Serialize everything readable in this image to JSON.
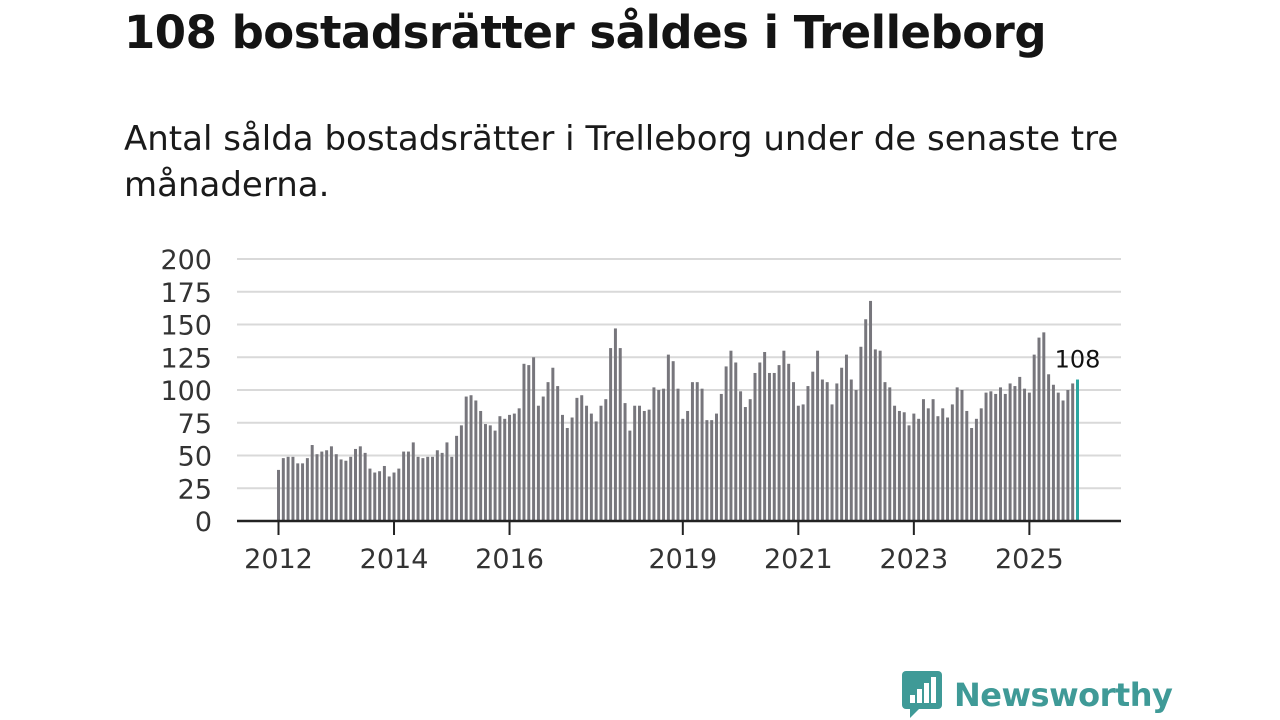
{
  "title": "108 bostadsrätter såldes i Trelleborg",
  "subtitle": "Antal sålda bostadsrätter i Trelleborg under de senaste tre månaderna.",
  "brand": {
    "name": "Newsworthy",
    "icon": "newsworthy-logo-icon",
    "color": "#3f9a97"
  },
  "chart_data": {
    "type": "bar",
    "title": "108 bostadsrätter såldes i Trelleborg",
    "xlabel": "",
    "ylabel": "",
    "ylim": [
      0,
      200
    ],
    "yticks": [
      "0",
      "25",
      "50",
      "75",
      "100",
      "125",
      "150",
      "175",
      "200"
    ],
    "xticks": [
      {
        "label": "2012",
        "index": 0
      },
      {
        "label": "2014",
        "index": 24
      },
      {
        "label": "2016",
        "index": 48
      },
      {
        "label": "2019",
        "index": 84
      },
      {
        "label": "2021",
        "index": 108
      },
      {
        "label": "2023",
        "index": 132
      },
      {
        "label": "2025",
        "index": 156
      }
    ],
    "bar_color": "#77767c",
    "highlight_color": "#2aa6a0",
    "highlight_label": "108",
    "series": [
      {
        "name": "Antal sålda bostadsrätter",
        "values": [
          39,
          48,
          49,
          49,
          44,
          44,
          48,
          58,
          51,
          53,
          54,
          57,
          51,
          47,
          46,
          49,
          55,
          57,
          52,
          40,
          37,
          38,
          42,
          34,
          37,
          40,
          53,
          53,
          60,
          49,
          48,
          49,
          49,
          54,
          52,
          60,
          49,
          65,
          73,
          95,
          96,
          92,
          84,
          74,
          73,
          69,
          80,
          78,
          81,
          82,
          86,
          120,
          119,
          125,
          88,
          95,
          106,
          117,
          103,
          81,
          71,
          79,
          94,
          96,
          88,
          82,
          76,
          88,
          93,
          132,
          147,
          132,
          90,
          69,
          88,
          88,
          84,
          85,
          102,
          100,
          101,
          127,
          122,
          101,
          78,
          84,
          106,
          106,
          101,
          77,
          77,
          82,
          97,
          118,
          130,
          121,
          99,
          87,
          93,
          113,
          121,
          129,
          113,
          113,
          119,
          130,
          120,
          106,
          88,
          89,
          103,
          114,
          130,
          108,
          106,
          89,
          105,
          117,
          127,
          108,
          100,
          133,
          154,
          168,
          131,
          130,
          106,
          102,
          88,
          84,
          83,
          73,
          82,
          78,
          93,
          86,
          93,
          80,
          86,
          79,
          89,
          102,
          100,
          84,
          71,
          78,
          86,
          98,
          99,
          97,
          102,
          97,
          105,
          103,
          110,
          101,
          98,
          127,
          140,
          144,
          112,
          104,
          98,
          92,
          100,
          105,
          108
        ]
      }
    ]
  }
}
